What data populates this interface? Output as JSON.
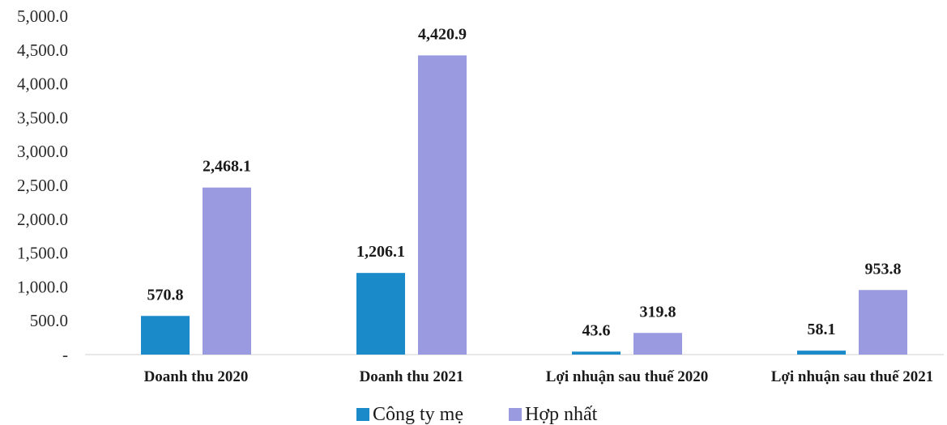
{
  "chart_data": {
    "type": "bar",
    "categories": [
      "Doanh thu 2020",
      "Doanh thu 2021",
      "Lợi nhuận sau thuế 2020",
      "Lợi nhuận sau thuế 2021"
    ],
    "series": [
      {
        "name": "Công ty mẹ",
        "values": [
          570.8,
          1206.1,
          43.6,
          58.1
        ],
        "labels": [
          "570.8",
          "1,206.1",
          "43.6",
          "58.1"
        ],
        "color": "#1b8ac9"
      },
      {
        "name": "Hợp nhất",
        "values": [
          2468.1,
          4420.9,
          319.8,
          953.8
        ],
        "labels": [
          "2,468.1",
          "4,420.9",
          "319.8",
          "953.8"
        ],
        "color": "#9a9ae0"
      }
    ],
    "yticks": [
      {
        "value": 0,
        "label": "-"
      },
      {
        "value": 500,
        "label": "500.0"
      },
      {
        "value": 1000,
        "label": "1,000.0"
      },
      {
        "value": 1500,
        "label": "1,500.0"
      },
      {
        "value": 2000,
        "label": "2,000.0"
      },
      {
        "value": 2500,
        "label": "2,500.0"
      },
      {
        "value": 3000,
        "label": "3,000.0"
      },
      {
        "value": 3500,
        "label": "3,500.0"
      },
      {
        "value": 4000,
        "label": "4,000.0"
      },
      {
        "value": 4500,
        "label": "4,500.0"
      },
      {
        "value": 5000,
        "label": "5,000.0"
      }
    ],
    "ylim": [
      0,
      5000
    ],
    "legend": "bottom",
    "grid": false
  }
}
